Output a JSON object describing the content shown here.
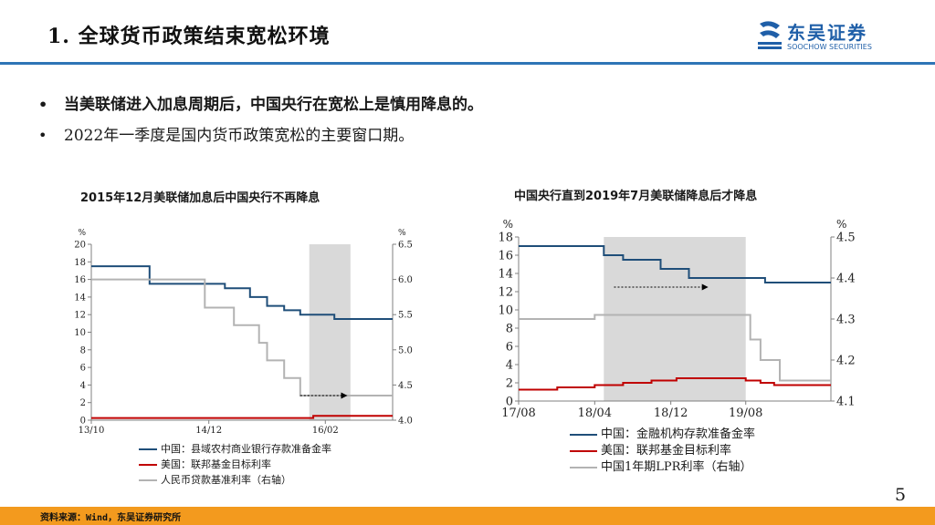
{
  "header": {
    "title": "1. 全球货币政策结束宽松环境",
    "logo_cn": "东吴证券",
    "logo_en": "SOOCHOW SECURITIES"
  },
  "bullets": [
    "当美联储进入加息周期后，中国央行在宽松上是慎用降息的。",
    "2022年一季度是国内货币政策宽松的主要窗口期。"
  ],
  "colors": {
    "blue": "#1f4e79",
    "red": "#c00000",
    "gray": "#b3b3b3",
    "shade": "#d9d9d9",
    "accent": "#2e75b6",
    "footer": "#f39a1e"
  },
  "chart_data": [
    {
      "type": "line",
      "title": "2015年12月美联储加息后中国央行不再降息",
      "ylabel": "%",
      "y2label": "%",
      "xlim": [
        2013.75,
        2016.75
      ],
      "ylim": [
        0,
        20
      ],
      "y2lim": [
        4.0,
        6.5
      ],
      "x_ticks": [
        {
          "x": 2013.75,
          "label": "13/10"
        },
        {
          "x": 2014.92,
          "label": "14/12"
        },
        {
          "x": 2016.08,
          "label": "16/02"
        }
      ],
      "y_ticks": [
        0,
        2,
        4,
        6,
        8,
        10,
        12,
        14,
        16,
        18,
        20
      ],
      "y2_ticks": [
        "4.0",
        "4.5",
        "5.0",
        "5.5",
        "6.0",
        "6.5"
      ],
      "y2_tick_values": [
        4.0,
        4.5,
        5.0,
        5.5,
        6.0,
        6.5
      ],
      "shaded": [
        2015.92,
        2016.33
      ],
      "arrow": {
        "from": [
          2015.83,
          4.35
        ],
        "to": [
          2016.3,
          4.35
        ],
        "axis": "y2"
      },
      "series": [
        {
          "name": "中国：县域农村商业银行存款准备金率",
          "color": "#1f4e79",
          "axis": "y",
          "points": [
            [
              2013.75,
              17.5
            ],
            [
              2014.33,
              17.5
            ],
            [
              2014.33,
              15.5
            ],
            [
              2015.08,
              15.5
            ],
            [
              2015.08,
              15
            ],
            [
              2015.33,
              15
            ],
            [
              2015.33,
              14
            ],
            [
              2015.5,
              14
            ],
            [
              2015.5,
              13
            ],
            [
              2015.67,
              13
            ],
            [
              2015.67,
              12.5
            ],
            [
              2015.83,
              12.5
            ],
            [
              2015.83,
              12
            ],
            [
              2016.17,
              12
            ],
            [
              2016.17,
              11.5
            ],
            [
              2016.75,
              11.5
            ]
          ]
        },
        {
          "name": "美国：联邦基金目标利率",
          "color": "#c00000",
          "axis": "y",
          "points": [
            [
              2013.75,
              0.25
            ],
            [
              2015.96,
              0.25
            ],
            [
              2015.96,
              0.5
            ],
            [
              2016.75,
              0.5
            ]
          ]
        },
        {
          "name": "人民币贷款基准利率（右轴）",
          "color": "#b3b3b3",
          "axis": "y2",
          "points": [
            [
              2013.75,
              6.0
            ],
            [
              2014.88,
              6.0
            ],
            [
              2014.88,
              5.6
            ],
            [
              2015.17,
              5.6
            ],
            [
              2015.17,
              5.35
            ],
            [
              2015.42,
              5.35
            ],
            [
              2015.42,
              5.1
            ],
            [
              2015.5,
              5.1
            ],
            [
              2015.5,
              4.85
            ],
            [
              2015.67,
              4.85
            ],
            [
              2015.67,
              4.6
            ],
            [
              2015.83,
              4.6
            ],
            [
              2015.83,
              4.35
            ],
            [
              2016.75,
              4.35
            ]
          ]
        }
      ]
    },
    {
      "type": "line",
      "title": "中国央行直到2019年7月美联储降息后才降息",
      "ylabel": "%",
      "y2label": "%",
      "xlim": [
        2017.58,
        2020.33
      ],
      "ylim": [
        0,
        18
      ],
      "y2lim": [
        4.1,
        4.5
      ],
      "x_ticks": [
        {
          "x": 2017.58,
          "label": "17/08"
        },
        {
          "x": 2018.25,
          "label": "18/04"
        },
        {
          "x": 2018.92,
          "label": "18/12"
        },
        {
          "x": 2019.58,
          "label": "19/08"
        }
      ],
      "y_ticks": [
        0,
        2,
        4,
        6,
        8,
        10,
        12,
        14,
        16,
        18
      ],
      "y2_ticks": [
        "4.1",
        "4.2",
        "4.3",
        "4.4",
        "4.5"
      ],
      "y2_tick_values": [
        4.1,
        4.2,
        4.3,
        4.4,
        4.5
      ],
      "shaded": [
        2018.33,
        2019.58
      ],
      "arrow": {
        "from": [
          2018.42,
          12.5
        ],
        "to": [
          2019.25,
          12.5
        ],
        "axis": "y"
      },
      "series": [
        {
          "name": "中国：金融机构存款准备金率",
          "color": "#1f4e79",
          "axis": "y",
          "points": [
            [
              2017.58,
              17
            ],
            [
              2018.33,
              17
            ],
            [
              2018.33,
              16
            ],
            [
              2018.5,
              16
            ],
            [
              2018.5,
              15.5
            ],
            [
              2018.83,
              15.5
            ],
            [
              2018.83,
              14.5
            ],
            [
              2019.08,
              14.5
            ],
            [
              2019.08,
              13.5
            ],
            [
              2019.75,
              13.5
            ],
            [
              2019.75,
              13
            ],
            [
              2020.33,
              13
            ]
          ]
        },
        {
          "name": "美国：联邦基金目标利率",
          "color": "#c00000",
          "axis": "y",
          "points": [
            [
              2017.58,
              1.25
            ],
            [
              2017.92,
              1.25
            ],
            [
              2017.92,
              1.5
            ],
            [
              2018.25,
              1.5
            ],
            [
              2018.25,
              1.75
            ],
            [
              2018.5,
              1.75
            ],
            [
              2018.5,
              2.0
            ],
            [
              2018.75,
              2.0
            ],
            [
              2018.75,
              2.25
            ],
            [
              2018.97,
              2.25
            ],
            [
              2018.97,
              2.5
            ],
            [
              2019.58,
              2.5
            ],
            [
              2019.58,
              2.25
            ],
            [
              2019.71,
              2.25
            ],
            [
              2019.71,
              2.0
            ],
            [
              2019.83,
              2.0
            ],
            [
              2019.83,
              1.75
            ],
            [
              2020.33,
              1.75
            ]
          ]
        },
        {
          "name": "中国1年期LPR利率（右轴）",
          "color": "#b3b3b3",
          "axis": "y2",
          "points": [
            [
              2017.58,
              4.3
            ],
            [
              2018.25,
              4.3
            ],
            [
              2018.25,
              4.31
            ],
            [
              2019.62,
              4.31
            ],
            [
              2019.62,
              4.25
            ],
            [
              2019.71,
              4.25
            ],
            [
              2019.71,
              4.2
            ],
            [
              2019.88,
              4.2
            ],
            [
              2019.88,
              4.15
            ],
            [
              2020.08,
              4.15
            ],
            [
              2020.08,
              4.15
            ],
            [
              2020.33,
              4.15
            ]
          ]
        }
      ]
    }
  ],
  "page_number": "5",
  "footer": {
    "source": "资料来源：Wind，东吴证券研究所"
  }
}
